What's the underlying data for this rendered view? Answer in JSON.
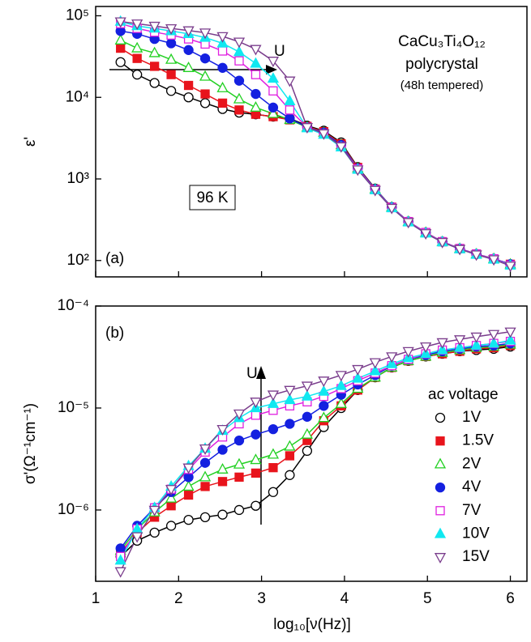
{
  "chart_data": [
    {
      "type": "line",
      "ylabel": "ε'",
      "log_y": true,
      "annotations": [
        "U",
        "CaCu₃Ti₄O₁₂",
        "polycrystal",
        "(48h tempered)",
        "96 K",
        "(a)"
      ],
      "x": [
        1.3,
        1.5,
        1.71,
        1.91,
        2.12,
        2.32,
        2.53,
        2.73,
        2.93,
        3.14,
        3.34,
        3.55,
        3.75,
        3.96,
        4.16,
        4.37,
        4.57,
        4.77,
        4.98,
        5.18,
        5.39,
        5.59,
        5.8,
        6.0
      ],
      "xlim": [
        1,
        6.2
      ],
      "xticks": [
        1,
        2,
        3,
        4,
        5,
        6
      ],
      "ylim": [
        63,
        130000
      ],
      "yticks": [
        {
          "value": 100,
          "label": "10²"
        },
        {
          "value": 1000,
          "label": "10³"
        },
        {
          "value": 10000,
          "label": "10⁴"
        },
        {
          "value": 100000,
          "label": "10⁵"
        }
      ],
      "series": [
        {
          "name": "1V",
          "color": "#000000",
          "marker": "circle",
          "filled": false,
          "values": [
            27000,
            19000,
            15000,
            12000,
            10000,
            8500,
            7200,
            6500,
            6200,
            5800,
            5500,
            4500,
            3900,
            2800,
            1400,
            760,
            450,
            300,
            220,
            170,
            140,
            120,
            105,
            90
          ]
        },
        {
          "name": "1.5V",
          "color": "#e8141c",
          "marker": "square",
          "filled": true,
          "values": [
            40000,
            30000,
            24000,
            19000,
            14000,
            11000,
            8500,
            7000,
            6200,
            5800,
            5300,
            4400,
            3800,
            2700,
            1380,
            750,
            450,
            300,
            220,
            170,
            140,
            120,
            105,
            90
          ]
        },
        {
          "name": "2V",
          "color": "#22d022",
          "marker": "triangle-up",
          "filled": false,
          "values": [
            50000,
            40000,
            35000,
            29000,
            23000,
            18000,
            13000,
            9500,
            7500,
            6300,
            5300,
            4300,
            3700,
            2600,
            1350,
            750,
            450,
            300,
            220,
            170,
            140,
            120,
            105,
            90
          ]
        },
        {
          "name": "4V",
          "color": "#1420e0",
          "marker": "circle",
          "filled": true,
          "values": [
            65000,
            60000,
            52000,
            46000,
            38000,
            30000,
            23000,
            16000,
            11000,
            7500,
            5500,
            4300,
            3700,
            2600,
            1350,
            750,
            450,
            300,
            220,
            170,
            140,
            120,
            105,
            90
          ]
        },
        {
          "name": "7V",
          "color": "#e020e0",
          "marker": "square",
          "filled": false,
          "values": [
            80000,
            70000,
            63000,
            58000,
            52000,
            45000,
            37000,
            28000,
            19000,
            12000,
            7000,
            4300,
            3600,
            2500,
            1330,
            740,
            445,
            300,
            220,
            170,
            140,
            120,
            105,
            88
          ]
        },
        {
          "name": "10V",
          "color": "#10e8f0",
          "marker": "triangle-up",
          "filled": true,
          "values": [
            85000,
            75000,
            70000,
            65000,
            60000,
            54000,
            46000,
            36000,
            26000,
            17000,
            9000,
            4200,
            3500,
            2450,
            1300,
            730,
            440,
            295,
            215,
            168,
            138,
            118,
            103,
            87
          ]
        },
        {
          "name": "15V",
          "color": "#7a3d8c",
          "marker": "triangle-down",
          "filled": false,
          "values": [
            85000,
            80000,
            75000,
            70000,
            66000,
            62000,
            56000,
            48000,
            39000,
            28000,
            16000,
            4300,
            3600,
            2500,
            1300,
            730,
            440,
            295,
            215,
            168,
            138,
            118,
            103,
            86
          ]
        }
      ]
    },
    {
      "type": "line",
      "xlabel": "log₁₀[ν(Hz)]",
      "ylabel": "σ'(Ω⁻¹cm⁻¹)",
      "log_y": true,
      "annotations": [
        "(b)",
        "U"
      ],
      "legend_title": "ac voltage",
      "x": [
        1.3,
        1.5,
        1.71,
        1.91,
        2.12,
        2.32,
        2.53,
        2.73,
        2.93,
        3.14,
        3.34,
        3.55,
        3.75,
        3.96,
        4.16,
        4.37,
        4.57,
        4.77,
        4.98,
        5.18,
        5.39,
        5.59,
        5.8,
        6.0
      ],
      "xlim": [
        1,
        6.2
      ],
      "xticks": [
        1,
        2,
        3,
        4,
        5,
        6
      ],
      "ylim": [
        2e-07,
        0.0001
      ],
      "yticks": [
        {
          "value": 1e-06,
          "label": "10⁻⁶"
        },
        {
          "value": 1e-05,
          "label": "10⁻⁵"
        },
        {
          "value": 0.0001,
          "label": "10⁻⁴"
        }
      ],
      "series": [
        {
          "name": "1V",
          "color": "#000000",
          "marker": "circle",
          "filled": false,
          "values": [
            3.5e-07,
            5e-07,
            6e-07,
            7e-07,
            8e-07,
            8.5e-07,
            9e-07,
            1e-06,
            1.1e-06,
            1.5e-06,
            2.2e-06,
            3.8e-06,
            6.5e-06,
            1e-05,
            1.5e-05,
            2e-05,
            2.5e-05,
            2.9e-05,
            3.2e-05,
            3.4e-05,
            3.6e-05,
            3.7e-05,
            3.8e-05,
            4e-05
          ]
        },
        {
          "name": "1.5V",
          "color": "#e8141c",
          "marker": "square",
          "filled": true,
          "values": [
            3.8e-07,
            6e-07,
            8.5e-07,
            1.1e-06,
            1.4e-06,
            1.7e-06,
            1.9e-06,
            2.1e-06,
            2.3e-06,
            2.6e-06,
            3.4e-06,
            4.8e-06,
            7.5e-06,
            1.05e-05,
            1.5e-05,
            2e-05,
            2.5e-05,
            2.9e-05,
            3.2e-05,
            3.4e-05,
            3.6e-05,
            3.8e-05,
            3.9e-05,
            4.1e-05
          ]
        },
        {
          "name": "2V",
          "color": "#22d022",
          "marker": "triangle-up",
          "filled": false,
          "values": [
            4e-07,
            6.5e-07,
            9.5e-07,
            1.3e-06,
            1.7e-06,
            2.1e-06,
            2.5e-06,
            2.8e-06,
            3.1e-06,
            3.5e-06,
            4.2e-06,
            5.5e-06,
            8e-06,
            1.1e-05,
            1.55e-05,
            2e-05,
            2.5e-05,
            2.9e-05,
            3.2e-05,
            3.5e-05,
            3.7e-05,
            3.9e-05,
            4e-05,
            4.2e-05
          ]
        },
        {
          "name": "4V",
          "color": "#1420e0",
          "marker": "circle",
          "filled": true,
          "values": [
            4.2e-07,
            7e-07,
            1.05e-06,
            1.5e-06,
            2.1e-06,
            2.9e-06,
            3.9e-06,
            4.8e-06,
            5.5e-06,
            6.2e-06,
            7e-06,
            8.2e-06,
            1.05e-05,
            1.35e-05,
            1.7e-05,
            2.1e-05,
            2.6e-05,
            3e-05,
            3.3e-05,
            3.6e-05,
            3.8e-05,
            4e-05,
            4.1e-05,
            4.3e-05
          ]
        },
        {
          "name": "7V",
          "color": "#e020e0",
          "marker": "square",
          "filled": false,
          "values": [
            3.5e-07,
            6.5e-07,
            1.05e-06,
            1.6e-06,
            2.5e-06,
            3.7e-06,
            5.2e-06,
            7e-06,
            8.5e-06,
            9.5e-06,
            1.05e-05,
            1.15e-05,
            1.3e-05,
            1.55e-05,
            1.85e-05,
            2.2e-05,
            2.6e-05,
            3e-05,
            3.4e-05,
            3.7e-05,
            3.9e-05,
            4.1e-05,
            4.3e-05,
            4.5e-05
          ]
        },
        {
          "name": "10V",
          "color": "#10e8f0",
          "marker": "triangle-up",
          "filled": true,
          "values": [
            3.2e-07,
            6.5e-07,
            1.05e-06,
            1.7e-06,
            2.7e-06,
            4e-06,
            6e-06,
            8e-06,
            1e-05,
            1.1e-05,
            1.2e-05,
            1.3e-05,
            1.45e-05,
            1.65e-05,
            1.95e-05,
            2.3e-05,
            2.7e-05,
            3.1e-05,
            3.4e-05,
            3.7e-05,
            3.9e-05,
            4.1e-05,
            4.3e-05,
            4.6e-05
          ]
        },
        {
          "name": "15V",
          "color": "#7a3d8c",
          "marker": "triangle-down",
          "filled": false,
          "values": [
            2.5e-07,
            5.5e-07,
            1e-06,
            1.6e-06,
            2.6e-06,
            4e-06,
            6.2e-06,
            8.8e-06,
            1.15e-05,
            1.35e-05,
            1.5e-05,
            1.65e-05,
            1.85e-05,
            2.1e-05,
            2.4e-05,
            2.8e-05,
            3.2e-05,
            3.6e-05,
            4e-05,
            4.4e-05,
            4.7e-05,
            5e-05,
            5.3e-05,
            5.6e-05
          ]
        }
      ]
    }
  ]
}
